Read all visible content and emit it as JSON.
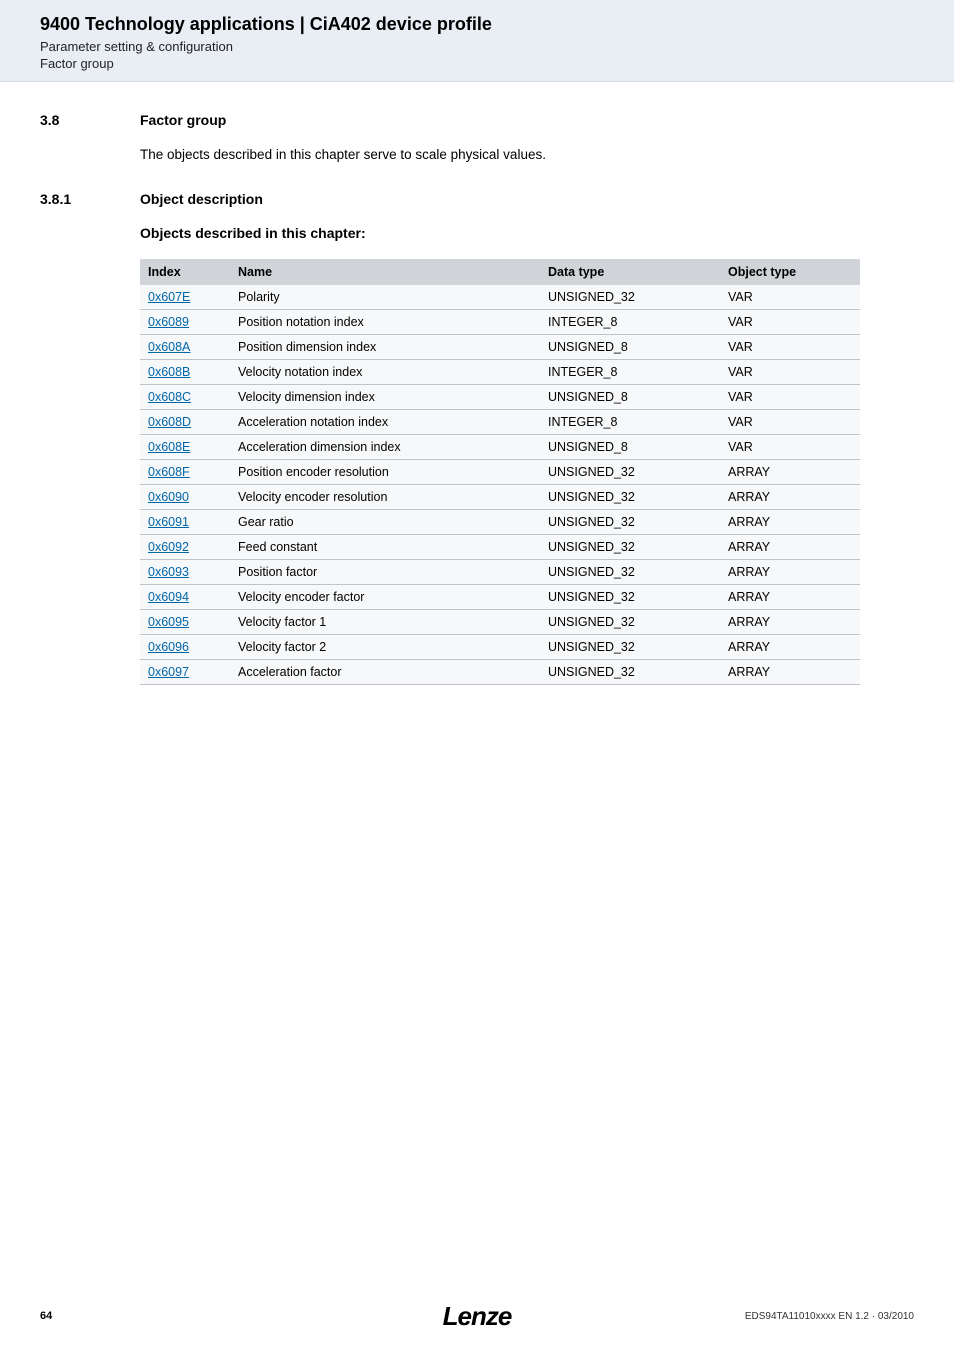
{
  "header": {
    "title": "9400 Technology applications | CiA402 device profile",
    "subtitle1": "Parameter setting & configuration",
    "subtitle2": "Factor group"
  },
  "section_3_8": {
    "number": "3.8",
    "title": "Factor group",
    "body": "The objects described in this chapter serve to scale physical values."
  },
  "section_3_8_1": {
    "number": "3.8.1",
    "title": "Object description",
    "sub_heading": "Objects described in this chapter:"
  },
  "table": {
    "headers": {
      "index": "Index",
      "name": "Name",
      "data_type": "Data type",
      "object_type": "Object type"
    },
    "rows": [
      {
        "index": "0x607E",
        "name": "Polarity",
        "data_type": "UNSIGNED_32",
        "object_type": "VAR"
      },
      {
        "index": "0x6089",
        "name": "Position notation index",
        "data_type": "INTEGER_8",
        "object_type": "VAR"
      },
      {
        "index": "0x608A",
        "name": "Position dimension index",
        "data_type": "UNSIGNED_8",
        "object_type": "VAR"
      },
      {
        "index": "0x608B",
        "name": "Velocity notation index",
        "data_type": "INTEGER_8",
        "object_type": "VAR"
      },
      {
        "index": "0x608C",
        "name": "Velocity dimension index",
        "data_type": "UNSIGNED_8",
        "object_type": "VAR"
      },
      {
        "index": "0x608D",
        "name": "Acceleration notation index",
        "data_type": "INTEGER_8",
        "object_type": "VAR"
      },
      {
        "index": "0x608E",
        "name": "Acceleration dimension index",
        "data_type": "UNSIGNED_8",
        "object_type": "VAR"
      },
      {
        "index": "0x608F",
        "name": "Position encoder resolution",
        "data_type": "UNSIGNED_32",
        "object_type": "ARRAY"
      },
      {
        "index": "0x6090",
        "name": "Velocity encoder resolution",
        "data_type": "UNSIGNED_32",
        "object_type": "ARRAY"
      },
      {
        "index": "0x6091",
        "name": "Gear ratio",
        "data_type": "UNSIGNED_32",
        "object_type": "ARRAY"
      },
      {
        "index": "0x6092",
        "name": "Feed constant",
        "data_type": "UNSIGNED_32",
        "object_type": "ARRAY"
      },
      {
        "index": "0x6093",
        "name": "Position factor",
        "data_type": "UNSIGNED_32",
        "object_type": "ARRAY"
      },
      {
        "index": "0x6094",
        "name": "Velocity encoder factor",
        "data_type": "UNSIGNED_32",
        "object_type": "ARRAY"
      },
      {
        "index": "0x6095",
        "name": "Velocity factor 1",
        "data_type": "UNSIGNED_32",
        "object_type": "ARRAY"
      },
      {
        "index": "0x6096",
        "name": "Velocity factor 2",
        "data_type": "UNSIGNED_32",
        "object_type": "ARRAY"
      },
      {
        "index": "0x6097",
        "name": "Acceleration factor",
        "data_type": "UNSIGNED_32",
        "object_type": "ARRAY"
      }
    ]
  },
  "footer": {
    "page": "64",
    "logo": "Lenze",
    "doc_id": "EDS94TA11010xxxx EN 1.2 · 03/2010"
  },
  "colors": {
    "header_bg": "#e8eef4",
    "link": "#0066aa",
    "table_header_bg": "#d0d4d8",
    "table_row_bg": "#f7f8f9",
    "table_border": "#c0c4c8"
  }
}
